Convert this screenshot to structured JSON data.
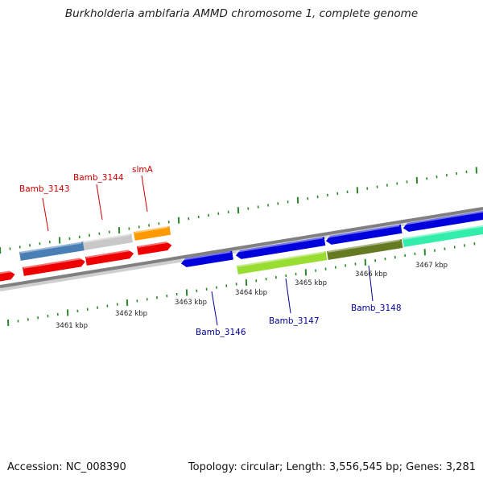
{
  "title": "Burkholderia ambifaria AMMD chromosome 1, complete genome",
  "footer": {
    "accession": "Accession: NC_008390",
    "summary": "Topology: circular; Length: 3,556,545 bp; Genes: 3,281"
  },
  "colors": {
    "backbone": "#808080",
    "tick": "#2a8a2a",
    "label_top": "#cc0000",
    "label_bottom": "#000099"
  },
  "scale_labels": [
    "3461 kbp",
    "3462 kbp",
    "3463 kbp",
    "3464 kbp",
    "3465 kbp",
    "3466 kbp",
    "3467 kbp"
  ],
  "gene_labels": [
    {
      "text": "Bamb_3143",
      "strand": "top"
    },
    {
      "text": "Bamb_3144",
      "strand": "top"
    },
    {
      "text": "slmA",
      "strand": "top"
    },
    {
      "text": "Bamb_3146",
      "strand": "bottom"
    },
    {
      "text": "Bamb_3147",
      "strand": "bottom"
    },
    {
      "text": "Bamb_3148",
      "strand": "bottom"
    }
  ],
  "features": [
    {
      "name": "gene-3143-cog",
      "color": "#4a7fb5"
    },
    {
      "name": "gene-3144-cog",
      "color": "#c8c8c8"
    },
    {
      "name": "slma-cog",
      "color": "#ff9900"
    },
    {
      "name": "gene-3143-cds",
      "color": "#ee0000"
    },
    {
      "name": "gene-3144-cds",
      "color": "#ee0000"
    },
    {
      "name": "slma-cds",
      "color": "#ee0000"
    },
    {
      "name": "left-partial-cds",
      "color": "#ee0000"
    },
    {
      "name": "gene-3146-cds",
      "color": "#0000dd"
    },
    {
      "name": "gene-3147-cds",
      "color": "#0000dd"
    },
    {
      "name": "gene-3148-cds",
      "color": "#0000dd"
    },
    {
      "name": "right-cds",
      "color": "#0000dd"
    },
    {
      "name": "gene-3147-cog",
      "color": "#99dd33"
    },
    {
      "name": "gene-3148-cog",
      "color": "#667a22"
    },
    {
      "name": "right-cog",
      "color": "#33eeaa"
    }
  ]
}
